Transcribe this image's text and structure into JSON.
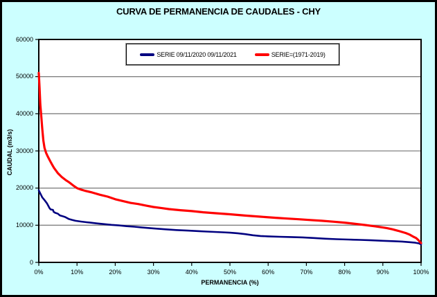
{
  "title": "CURVA DE PERMANENCIA DE CAUDALES - CHY",
  "colors": {
    "background": "#CCFFFF",
    "plot_background": "#FFFFFF",
    "gridline": "#808080",
    "axis": "#000000",
    "series_blue": "#000080",
    "series_red": "#FF0000"
  },
  "legend": {
    "items": [
      {
        "label": "SERIE 09/11/2020 09/11/2021",
        "color": "#000080"
      },
      {
        "label": "SERIE=(1971-2019)",
        "color": "#FF0000"
      }
    ]
  },
  "y_axis": {
    "title": "CAUDAL (m3/s)",
    "ticks": [
      "0",
      "10000",
      "20000",
      "30000",
      "40000",
      "50000",
      "60000"
    ]
  },
  "x_axis": {
    "title": "PERMANENCIA (%)",
    "ticks": [
      "0%",
      "10%",
      "20%",
      "30%",
      "40%",
      "50%",
      "60%",
      "70%",
      "80%",
      "90%",
      "100%"
    ]
  },
  "chart_data": {
    "type": "line",
    "title": "CURVA DE PERMANENCIA DE CAUDALES - CHY",
    "xlabel": "PERMANENCIA (%)",
    "ylabel": "CAUDAL (m3/s)",
    "xlim": [
      0,
      100
    ],
    "ylim": [
      0,
      60000
    ],
    "x_tick_interval": 10,
    "y_tick_interval": 10000,
    "grid": "horizontal solid gray",
    "legend_position": "top-center inside plot",
    "series": [
      {
        "name": "SERIE 09/11/2020 09/11/2021",
        "color": "#000080",
        "line_width": 2.6,
        "points": [
          [
            0,
            19400
          ],
          [
            0.3,
            18750
          ],
          [
            0.9,
            17500
          ],
          [
            1.5,
            16750
          ],
          [
            2.1,
            15950
          ],
          [
            2.5,
            15200
          ],
          [
            2.8,
            14600
          ],
          [
            3.1,
            14250
          ],
          [
            3.7,
            14150
          ],
          [
            3.9,
            13600
          ],
          [
            4.3,
            13350
          ],
          [
            5,
            13100
          ],
          [
            5.5,
            12650
          ],
          [
            6.2,
            12450
          ],
          [
            6.9,
            12200
          ],
          [
            7.8,
            11700
          ],
          [
            8.7,
            11450
          ],
          [
            9.6,
            11200
          ],
          [
            11,
            11000
          ],
          [
            12.5,
            10800
          ],
          [
            13.5,
            10700
          ],
          [
            15,
            10500
          ],
          [
            17,
            10300
          ],
          [
            19,
            10100
          ],
          [
            21,
            9950
          ],
          [
            23,
            9750
          ],
          [
            25,
            9600
          ],
          [
            27,
            9400
          ],
          [
            30,
            9150
          ],
          [
            33,
            8900
          ],
          [
            36,
            8700
          ],
          [
            39,
            8550
          ],
          [
            42,
            8400
          ],
          [
            44,
            8300
          ],
          [
            46,
            8200
          ],
          [
            48,
            8100
          ],
          [
            50,
            8000
          ],
          [
            52,
            7850
          ],
          [
            54,
            7600
          ],
          [
            56,
            7300
          ],
          [
            58,
            7100
          ],
          [
            60,
            7000
          ],
          [
            63,
            6900
          ],
          [
            66,
            6820
          ],
          [
            69,
            6720
          ],
          [
            72,
            6550
          ],
          [
            75,
            6380
          ],
          [
            78,
            6250
          ],
          [
            81,
            6150
          ],
          [
            84,
            6050
          ],
          [
            87,
            5950
          ],
          [
            90,
            5820
          ],
          [
            93,
            5700
          ],
          [
            95,
            5600
          ],
          [
            97,
            5450
          ],
          [
            98.5,
            5300
          ],
          [
            99.5,
            5100
          ],
          [
            100,
            4800
          ]
        ]
      },
      {
        "name": "SERIE=(1971-2019)",
        "color": "#FF0000",
        "line_width": 3.2,
        "points": [
          [
            0,
            51000
          ],
          [
            0.2,
            47000
          ],
          [
            0.4,
            42500
          ],
          [
            0.6,
            40000
          ],
          [
            0.9,
            36000
          ],
          [
            1.2,
            32800
          ],
          [
            1.5,
            30800
          ],
          [
            1.9,
            29500
          ],
          [
            2.3,
            28600
          ],
          [
            3,
            27200
          ],
          [
            3.5,
            26300
          ],
          [
            4,
            25400
          ],
          [
            5,
            24000
          ],
          [
            6,
            23000
          ],
          [
            7,
            22200
          ],
          [
            8,
            21500
          ],
          [
            9,
            20700
          ],
          [
            10,
            20000
          ],
          [
            11,
            19600
          ],
          [
            12,
            19300
          ],
          [
            14,
            18800
          ],
          [
            16,
            18200
          ],
          [
            18,
            17700
          ],
          [
            20,
            17000
          ],
          [
            22,
            16500
          ],
          [
            24,
            16000
          ],
          [
            26,
            15700
          ],
          [
            28,
            15300
          ],
          [
            30,
            14900
          ],
          [
            32,
            14650
          ],
          [
            34,
            14350
          ],
          [
            37,
            14050
          ],
          [
            40,
            13800
          ],
          [
            43,
            13500
          ],
          [
            46,
            13250
          ],
          [
            50,
            12950
          ],
          [
            54,
            12600
          ],
          [
            58,
            12300
          ],
          [
            62,
            12000
          ],
          [
            65,
            11800
          ],
          [
            68,
            11600
          ],
          [
            71,
            11400
          ],
          [
            74,
            11200
          ],
          [
            77,
            10950
          ],
          [
            80,
            10700
          ],
          [
            83,
            10350
          ],
          [
            85.5,
            10050
          ],
          [
            88,
            9700
          ],
          [
            90,
            9400
          ],
          [
            91,
            9250
          ],
          [
            92.5,
            8900
          ],
          [
            94,
            8500
          ],
          [
            95,
            8200
          ],
          [
            96,
            7900
          ],
          [
            97,
            7500
          ],
          [
            98,
            6900
          ],
          [
            98.7,
            6550
          ],
          [
            99.3,
            6000
          ],
          [
            99.7,
            5500
          ],
          [
            100,
            5200
          ]
        ]
      }
    ]
  }
}
